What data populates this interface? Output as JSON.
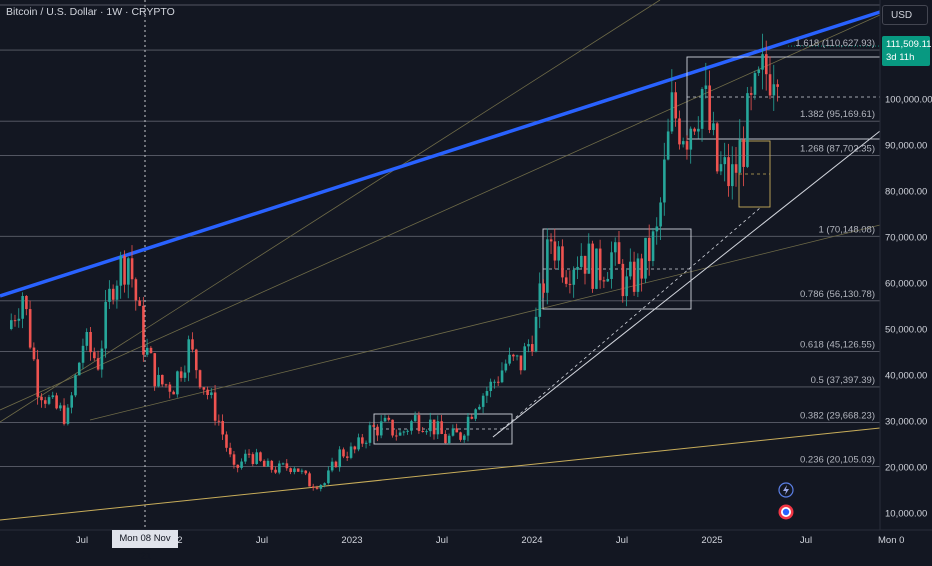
{
  "chart_data": {
    "type": "candlestick",
    "title": "Bitcoin / U.S. Dollar · 1W · CRYPTO",
    "currency_button": "USD",
    "last_price": "111,509.11",
    "countdown": "3d 11h",
    "crosshair_label": "Mon 08 Nov '21",
    "right_edge_label": "Mon 0",
    "x_ticks": [
      "Jul",
      "2022",
      "Jul",
      "2023",
      "Jul",
      "2024",
      "Jul",
      "2025",
      "Jul"
    ],
    "y_ticks": [
      "100,000.00",
      "90,000.00",
      "80,000.00",
      "70,000.00",
      "60,000.00",
      "50,000.00",
      "40,000.00",
      "30,000.00",
      "20,000.00",
      "10,000.00"
    ],
    "y_range": [
      8000,
      120000
    ],
    "fib_levels": [
      {
        "ratio": "1.618",
        "label": "1.618 (110,627.93)",
        "value": 110627.93
      },
      {
        "ratio": "1.382",
        "label": "1.382 (95,169.61)",
        "value": 95169.61
      },
      {
        "ratio": "1.268",
        "label": "1.268 (87,702.35)",
        "value": 87702.35
      },
      {
        "ratio": "1",
        "label": "1 (70,148.08)",
        "value": 70148.08
      },
      {
        "ratio": "0.786",
        "label": "0.786 (56,130.78)",
        "value": 56130.78
      },
      {
        "ratio": "0.618",
        "label": "0.618 (45,126.55)",
        "value": 45126.55
      },
      {
        "ratio": "0.5",
        "label": "0.5 (37,397.39)",
        "value": 37397.39
      },
      {
        "ratio": "0.382",
        "label": "0.382 (29,668.23)",
        "value": 29668.23
      },
      {
        "ratio": "0.236",
        "label": "0.236 (20,105.03)",
        "value": 20105.03
      }
    ],
    "approx_price_path": [
      [
        "2021-03",
        50000
      ],
      [
        "2021-04",
        58000
      ],
      [
        "2021-05",
        38000
      ],
      [
        "2021-06",
        33000
      ],
      [
        "2021-07",
        31000
      ],
      [
        "2021-08",
        47000
      ],
      [
        "2021-09",
        43000
      ],
      [
        "2021-10",
        61000
      ],
      [
        "2021-11",
        66000
      ],
      [
        "2021-12",
        47000
      ],
      [
        "2022-01",
        38000
      ],
      [
        "2022-02",
        38000
      ],
      [
        "2022-03",
        46000
      ],
      [
        "2022-04",
        38000
      ],
      [
        "2022-05",
        30000
      ],
      [
        "2022-06",
        19000
      ],
      [
        "2022-07",
        23000
      ],
      [
        "2022-08",
        20000
      ],
      [
        "2022-09",
        19500
      ],
      [
        "2022-10",
        20500
      ],
      [
        "2022-11",
        16500
      ],
      [
        "2022-12",
        16500
      ],
      [
        "2023-01",
        23000
      ],
      [
        "2023-02",
        23500
      ],
      [
        "2023-03",
        28000
      ],
      [
        "2023-04",
        29000
      ],
      [
        "2023-05",
        27000
      ],
      [
        "2023-06",
        30500
      ],
      [
        "2023-07",
        29500
      ],
      [
        "2023-08",
        26000
      ],
      [
        "2023-09",
        27000
      ],
      [
        "2023-10",
        34500
      ],
      [
        "2023-11",
        37500
      ],
      [
        "2023-12",
        42500
      ],
      [
        "2024-01",
        42500
      ],
      [
        "2024-02",
        51000
      ],
      [
        "2024-03",
        70000
      ],
      [
        "2024-04",
        64000
      ],
      [
        "2024-05",
        67000
      ],
      [
        "2024-06",
        62500
      ],
      [
        "2024-07",
        66000
      ],
      [
        "2024-08",
        59000
      ],
      [
        "2024-09",
        63500
      ],
      [
        "2024-10",
        70000
      ],
      [
        "2024-11",
        97000
      ],
      [
        "2024-12",
        94000
      ],
      [
        "2025-01",
        102000
      ],
      [
        "2025-02",
        84500
      ],
      [
        "2025-03",
        82500
      ],
      [
        "2025-04",
        94000
      ],
      [
        "2025-05",
        104000
      ],
      [
        "2025-06",
        111509
      ]
    ]
  }
}
